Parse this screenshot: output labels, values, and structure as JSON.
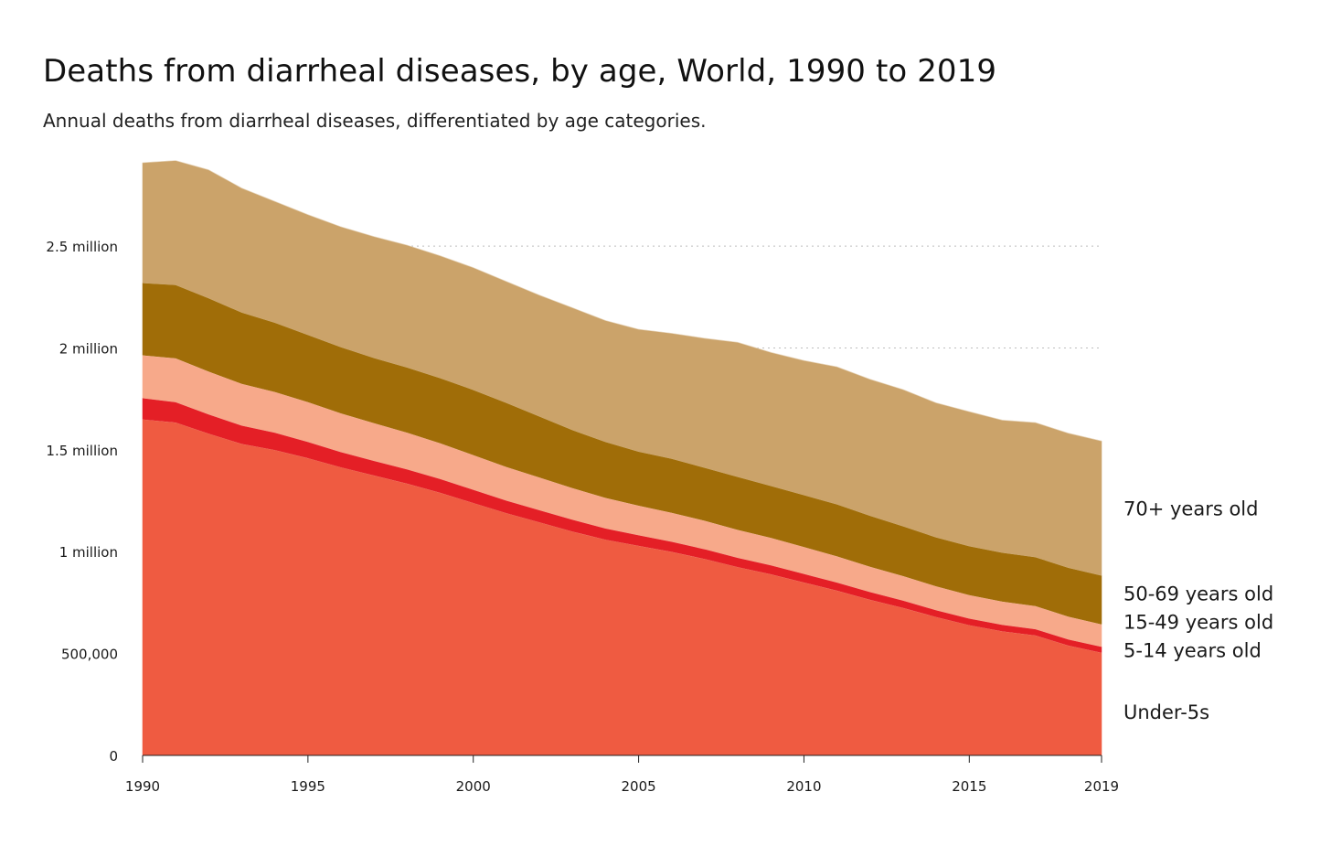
{
  "title": "Deaths from diarrheal diseases, by age, World, 1990 to 2019",
  "subtitle": "Annual deaths from diarrheal diseases, differentiated by age categories.",
  "chart_data": {
    "type": "area",
    "stacked": true,
    "title": "Deaths from diarrheal diseases, by age, World, 1990 to 2019",
    "subtitle": "Annual deaths from diarrheal diseases, differentiated by age categories.",
    "xlabel": "",
    "ylabel": "",
    "xlim": [
      1990,
      2019
    ],
    "ylim": [
      0,
      2900000
    ],
    "grid": "horizontal dotted",
    "legend_placement": "right, labels at series ends",
    "x_ticks": [
      {
        "value": 1990,
        "label": "1990"
      },
      {
        "value": 1995,
        "label": "1995"
      },
      {
        "value": 2000,
        "label": "2000"
      },
      {
        "value": 2005,
        "label": "2005"
      },
      {
        "value": 2010,
        "label": "2010"
      },
      {
        "value": 2015,
        "label": "2015"
      },
      {
        "value": 2019,
        "label": "2019"
      }
    ],
    "y_ticks": [
      {
        "value": 0,
        "label": "0"
      },
      {
        "value": 500000,
        "label": "500,000"
      },
      {
        "value": 1000000,
        "label": "1 million"
      },
      {
        "value": 1500000,
        "label": "1.5 million"
      },
      {
        "value": 2000000,
        "label": "2 million"
      },
      {
        "value": 2500000,
        "label": "2.5 million"
      }
    ],
    "x": [
      1990,
      1991,
      1992,
      1993,
      1994,
      1995,
      1996,
      1997,
      1998,
      1999,
      2000,
      2001,
      2002,
      2003,
      2004,
      2005,
      2006,
      2007,
      2008,
      2009,
      2010,
      2011,
      2012,
      2013,
      2014,
      2015,
      2016,
      2017,
      2018,
      2019
    ],
    "series": [
      {
        "name": "Under-5s",
        "color": "#ef5b41",
        "values": [
          1650000,
          1635000,
          1580000,
          1530000,
          1500000,
          1460000,
          1415000,
          1375000,
          1335000,
          1290000,
          1240000,
          1190000,
          1145000,
          1100000,
          1060000,
          1030000,
          1000000,
          965000,
          925000,
          890000,
          850000,
          810000,
          765000,
          725000,
          680000,
          640000,
          610000,
          590000,
          540000,
          505000
        ]
      },
      {
        "name": "5-14 years old",
        "color": "#e41f26",
        "values": [
          105000,
          100000,
          95000,
          90000,
          85000,
          80000,
          75000,
          72000,
          70000,
          68000,
          65000,
          62000,
          60000,
          58000,
          55000,
          52000,
          50000,
          48000,
          46000,
          44000,
          42000,
          40000,
          38000,
          36000,
          34000,
          33000,
          32000,
          31000,
          30000,
          29000
        ]
      },
      {
        "name": "15-49 years old",
        "color": "#f7a98a",
        "values": [
          210000,
          215000,
          210000,
          205000,
          200000,
          195000,
          190000,
          185000,
          180000,
          175000,
          170000,
          165000,
          160000,
          155000,
          150000,
          145000,
          142000,
          140000,
          137000,
          135000,
          132000,
          128000,
          124000,
          120000,
          117000,
          115000,
          114000,
          113000,
          112000,
          110000
        ]
      },
      {
        "name": "50-69 years old",
        "color": "#a06d08",
        "values": [
          355000,
          360000,
          360000,
          350000,
          340000,
          330000,
          325000,
          320000,
          320000,
          320000,
          320000,
          315000,
          300000,
          285000,
          275000,
          265000,
          265000,
          260000,
          260000,
          255000,
          255000,
          255000,
          250000,
          245000,
          240000,
          240000,
          240000,
          240000,
          240000,
          240000
        ]
      },
      {
        "name": "70+ years old",
        "color": "#cba36a",
        "values": [
          590000,
          610000,
          630000,
          610000,
          595000,
          590000,
          590000,
          595000,
          600000,
          600000,
          600000,
          595000,
          595000,
          600000,
          595000,
          600000,
          615000,
          635000,
          660000,
          655000,
          660000,
          675000,
          670000,
          670000,
          660000,
          660000,
          650000,
          660000,
          660000,
          660000
        ]
      }
    ]
  }
}
